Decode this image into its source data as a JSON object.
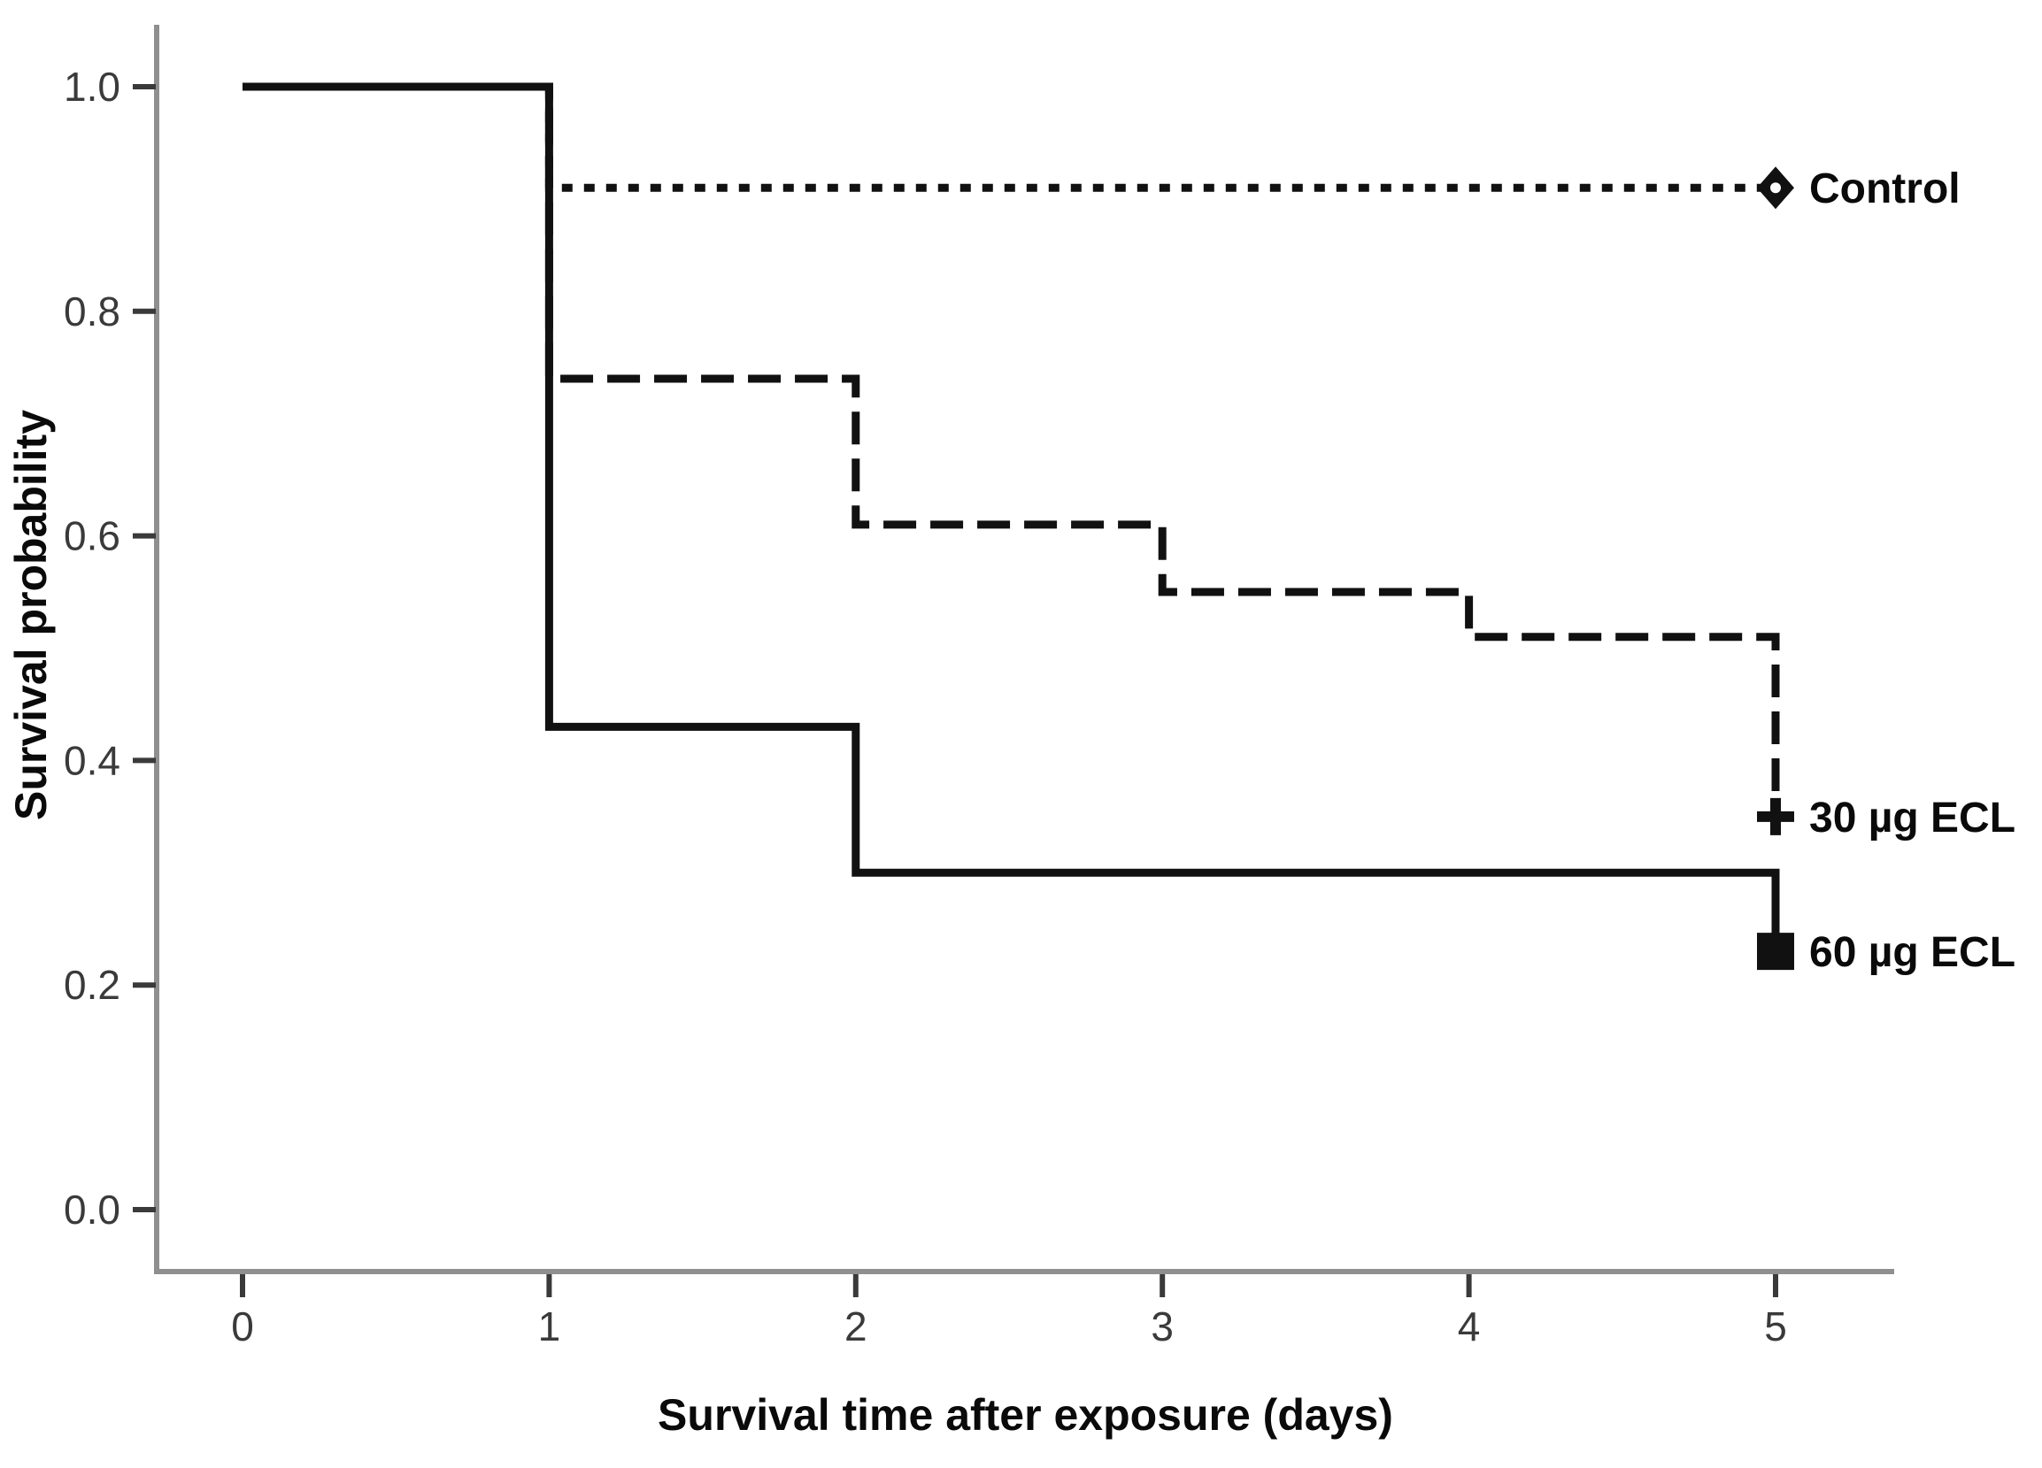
{
  "figure": {
    "description": "Kaplan-Meier survival curves for Control, 30 µg ECL and 60 µg ECL groups",
    "background_color": "#ffffff",
    "axis_line_color": "#8f8f8f",
    "tick_mark_color": "#3a3a3a",
    "tick_label_color": "#3a3a3a",
    "title_color": "#0a0a0a",
    "curve_color": "#111111",
    "marker_center_color": "#ffffff"
  },
  "chart_data": {
    "type": "line",
    "subtype": "kaplan_meier_step",
    "title": "",
    "xlabel": "Survival time after exposure (days)",
    "ylabel": "Survival probability",
    "x_tick_labels": [
      "0",
      "1",
      "2",
      "3",
      "4",
      "5"
    ],
    "x_tick_values": [
      0,
      1,
      2,
      3,
      4,
      5
    ],
    "y_tick_labels": [
      "0.0",
      "0.2",
      "0.4",
      "0.6",
      "0.8",
      "1.0"
    ],
    "y_tick_values": [
      0.0,
      0.2,
      0.4,
      0.6,
      0.8,
      1.0
    ],
    "xlim": [
      -0.28,
      5.39
    ],
    "ylim": [
      -0.055,
      1.055
    ],
    "grid": false,
    "legend_position": "labels_at_curve_ends",
    "series": [
      {
        "name": "control",
        "label": "Control",
        "line_style": "dotted",
        "marker": "diamond",
        "x": [
          0,
          1,
          1,
          5
        ],
        "y": [
          1.0,
          1.0,
          0.91,
          0.91
        ],
        "end_point": [
          5,
          0.91
        ]
      },
      {
        "name": "ecl-30ug",
        "label": "30 µg ECL",
        "line_style": "long-dash",
        "marker": "plus",
        "x": [
          0,
          1,
          1,
          2,
          2,
          3,
          3,
          4,
          4,
          5,
          5
        ],
        "y": [
          1.0,
          1.0,
          0.74,
          0.74,
          0.61,
          0.61,
          0.55,
          0.55,
          0.51,
          0.51,
          0.35
        ],
        "end_point": [
          5,
          0.35
        ]
      },
      {
        "name": "ecl-60ug",
        "label": "60 µg ECL",
        "line_style": "solid",
        "marker": "filled-square",
        "x": [
          0,
          1,
          1,
          2,
          2,
          5,
          5
        ],
        "y": [
          1.0,
          1.0,
          0.43,
          0.43,
          0.3,
          0.3,
          0.23
        ],
        "end_point": [
          5,
          0.23
        ]
      }
    ]
  }
}
